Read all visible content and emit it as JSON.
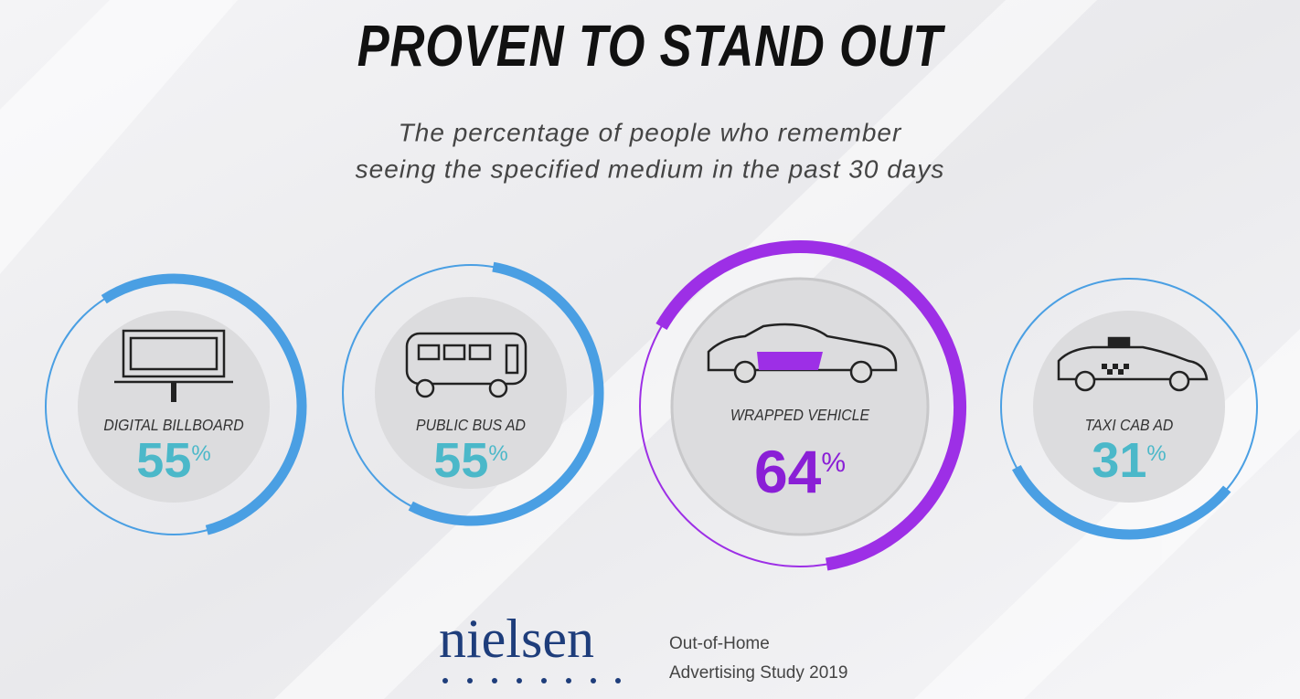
{
  "chart_data": {
    "type": "ring",
    "title": "PROVEN TO STAND OUT",
    "subtitle": [
      "The percentage of people who remember",
      "seeing the specified medium in the past 30 days"
    ],
    "categories": [
      "DIGITAL BILLBOARD",
      "PUBLIC BUS AD",
      "WRAPPED VEHICLE",
      "TAXI CAB AD"
    ],
    "values": [
      55,
      55,
      64,
      31
    ],
    "value_labels": [
      "55%",
      "55%",
      "64%",
      "31%"
    ],
    "colors": [
      "#4a9fe3",
      "#4a9fe3",
      "#9d2fe6",
      "#4a9fe3"
    ],
    "label_colors": [
      "#4bb8c9",
      "#4bb8c9",
      "#8a1fd6",
      "#4bb8c9"
    ],
    "logo": "nielsen",
    "source": [
      "Out-of-Home",
      "Advertising Study 2019"
    ]
  }
}
